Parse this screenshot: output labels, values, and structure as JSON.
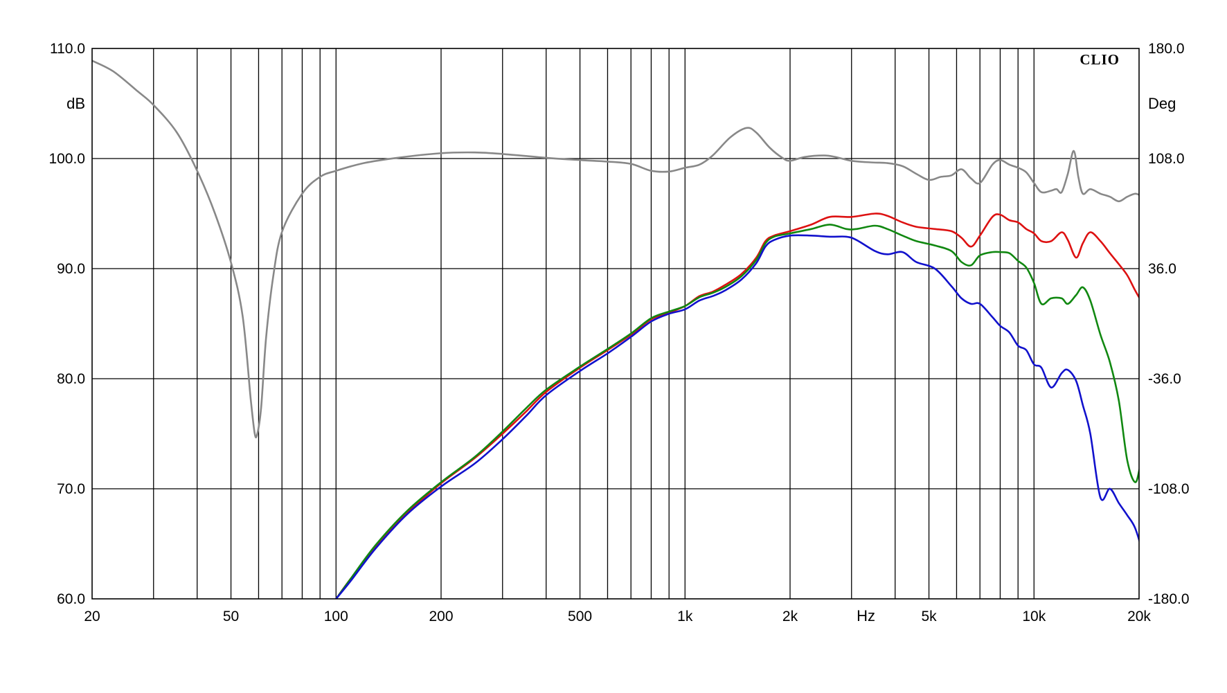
{
  "chart_data": {
    "type": "line",
    "brand": "CLIO",
    "xlabel": "Hz",
    "ylabel_left": "dB",
    "ylabel_right": "Deg",
    "x_scale": "log",
    "xlim": [
      20,
      20000
    ],
    "ylim": [
      60,
      110
    ],
    "ylim_right": [
      -180,
      180
    ],
    "grid": true,
    "x_ticks": [
      {
        "value": 20,
        "label": "20"
      },
      {
        "value": 50,
        "label": "50"
      },
      {
        "value": 100,
        "label": "100"
      },
      {
        "value": 200,
        "label": "200"
      },
      {
        "value": 500,
        "label": "500"
      },
      {
        "value": 1000,
        "label": "1k"
      },
      {
        "value": 2000,
        "label": "2k"
      },
      {
        "value": 5000,
        "label": "5k"
      },
      {
        "value": 10000,
        "label": "10k"
      },
      {
        "value": 20000,
        "label": "20k"
      }
    ],
    "x_unit_label_at": 3300,
    "y_ticks_left": [
      "60.0",
      "70.0",
      "80.0",
      "90.0",
      "100.0",
      "110.0"
    ],
    "y_ticks_right": [
      "-180.0",
      "-108.0",
      "-36.0",
      "36.0",
      "108.0",
      "180.0"
    ],
    "colors": {
      "red": "#dd1111",
      "green": "#118811",
      "blue": "#1111cc",
      "phase": "#888888",
      "grid": "#000000"
    },
    "series": [
      {
        "axis": "left",
        "color": "red",
        "points": [
          [
            100,
            60.0
          ],
          [
            110,
            61.8
          ],
          [
            130,
            64.7
          ],
          [
            160,
            67.8
          ],
          [
            200,
            70.5
          ],
          [
            250,
            72.8
          ],
          [
            300,
            75.0
          ],
          [
            350,
            77.0
          ],
          [
            400,
            78.8
          ],
          [
            500,
            81.0
          ],
          [
            600,
            82.6
          ],
          [
            700,
            84.0
          ],
          [
            800,
            85.4
          ],
          [
            900,
            86.0
          ],
          [
            1000,
            86.6
          ],
          [
            1100,
            87.5
          ],
          [
            1200,
            87.9
          ],
          [
            1300,
            88.5
          ],
          [
            1450,
            89.5
          ],
          [
            1600,
            91.0
          ],
          [
            1700,
            92.5
          ],
          [
            1800,
            93.0
          ],
          [
            2000,
            93.4
          ],
          [
            2300,
            94.0
          ],
          [
            2600,
            94.7
          ],
          [
            3000,
            94.7
          ],
          [
            3500,
            95.0
          ],
          [
            3800,
            94.8
          ],
          [
            4200,
            94.2
          ],
          [
            4600,
            93.8
          ],
          [
            5200,
            93.6
          ],
          [
            5800,
            93.4
          ],
          [
            6200,
            92.8
          ],
          [
            6600,
            92.0
          ],
          [
            7000,
            93.0
          ],
          [
            7600,
            94.7
          ],
          [
            8000,
            94.9
          ],
          [
            8500,
            94.4
          ],
          [
            9000,
            94.2
          ],
          [
            9500,
            93.6
          ],
          [
            10000,
            93.2
          ],
          [
            10500,
            92.5
          ],
          [
            11200,
            92.5
          ],
          [
            12000,
            93.3
          ],
          [
            12500,
            92.6
          ],
          [
            13200,
            91.0
          ],
          [
            13800,
            92.3
          ],
          [
            14500,
            93.3
          ],
          [
            15500,
            92.5
          ],
          [
            16500,
            91.4
          ],
          [
            17500,
            90.4
          ],
          [
            18500,
            89.4
          ],
          [
            19500,
            88.0
          ],
          [
            20500,
            86.8
          ],
          [
            21500,
            85.5
          ]
        ]
      },
      {
        "axis": "left",
        "color": "green",
        "points": [
          [
            100,
            60.0
          ],
          [
            110,
            61.8
          ],
          [
            130,
            64.9
          ],
          [
            160,
            68.0
          ],
          [
            200,
            70.6
          ],
          [
            250,
            72.9
          ],
          [
            300,
            75.2
          ],
          [
            350,
            77.3
          ],
          [
            400,
            79.0
          ],
          [
            500,
            81.1
          ],
          [
            600,
            82.7
          ],
          [
            700,
            84.1
          ],
          [
            800,
            85.5
          ],
          [
            900,
            86.1
          ],
          [
            1000,
            86.6
          ],
          [
            1100,
            87.4
          ],
          [
            1200,
            87.8
          ],
          [
            1300,
            88.3
          ],
          [
            1450,
            89.3
          ],
          [
            1600,
            90.8
          ],
          [
            1700,
            92.3
          ],
          [
            1800,
            92.9
          ],
          [
            2000,
            93.2
          ],
          [
            2300,
            93.6
          ],
          [
            2600,
            94.0
          ],
          [
            2900,
            93.6
          ],
          [
            3100,
            93.6
          ],
          [
            3500,
            93.9
          ],
          [
            3800,
            93.6
          ],
          [
            4200,
            93.0
          ],
          [
            4600,
            92.5
          ],
          [
            5200,
            92.1
          ],
          [
            5800,
            91.6
          ],
          [
            6200,
            90.6
          ],
          [
            6600,
            90.3
          ],
          [
            7000,
            91.2
          ],
          [
            7600,
            91.5
          ],
          [
            8000,
            91.5
          ],
          [
            8500,
            91.4
          ],
          [
            9000,
            90.7
          ],
          [
            9500,
            90.1
          ],
          [
            10000,
            88.7
          ],
          [
            10500,
            86.8
          ],
          [
            11200,
            87.3
          ],
          [
            12000,
            87.3
          ],
          [
            12500,
            86.8
          ],
          [
            13200,
            87.6
          ],
          [
            13800,
            88.3
          ],
          [
            14500,
            87.1
          ],
          [
            15500,
            84.0
          ],
          [
            16500,
            81.5
          ],
          [
            17500,
            78.0
          ],
          [
            18500,
            72.6
          ],
          [
            19500,
            70.6
          ],
          [
            20200,
            72.2
          ],
          [
            21000,
            73.9
          ],
          [
            21500,
            72.8
          ]
        ]
      },
      {
        "axis": "left",
        "color": "blue",
        "points": [
          [
            100,
            60.0
          ],
          [
            110,
            61.6
          ],
          [
            130,
            64.6
          ],
          [
            160,
            67.7
          ],
          [
            200,
            70.2
          ],
          [
            250,
            72.3
          ],
          [
            300,
            74.5
          ],
          [
            350,
            76.6
          ],
          [
            400,
            78.5
          ],
          [
            500,
            80.7
          ],
          [
            600,
            82.3
          ],
          [
            700,
            83.8
          ],
          [
            800,
            85.2
          ],
          [
            900,
            85.9
          ],
          [
            1000,
            86.3
          ],
          [
            1100,
            87.1
          ],
          [
            1200,
            87.5
          ],
          [
            1300,
            88.0
          ],
          [
            1450,
            89.0
          ],
          [
            1600,
            90.5
          ],
          [
            1700,
            92.0
          ],
          [
            1800,
            92.6
          ],
          [
            2000,
            93.0
          ],
          [
            2300,
            93.0
          ],
          [
            2600,
            92.9
          ],
          [
            2900,
            92.9
          ],
          [
            3100,
            92.6
          ],
          [
            3500,
            91.6
          ],
          [
            3800,
            91.3
          ],
          [
            4200,
            91.5
          ],
          [
            4600,
            90.6
          ],
          [
            5200,
            90.0
          ],
          [
            5800,
            88.4
          ],
          [
            6200,
            87.3
          ],
          [
            6600,
            86.8
          ],
          [
            7000,
            86.8
          ],
          [
            7600,
            85.6
          ],
          [
            8000,
            84.8
          ],
          [
            8500,
            84.2
          ],
          [
            9000,
            83.0
          ],
          [
            9500,
            82.6
          ],
          [
            10000,
            81.3
          ],
          [
            10500,
            81.0
          ],
          [
            11200,
            79.2
          ],
          [
            12000,
            80.5
          ],
          [
            12500,
            80.8
          ],
          [
            13200,
            79.8
          ],
          [
            13800,
            77.6
          ],
          [
            14500,
            75.0
          ],
          [
            15500,
            69.2
          ],
          [
            16500,
            70.0
          ],
          [
            17500,
            68.7
          ],
          [
            18500,
            67.6
          ],
          [
            19500,
            66.4
          ],
          [
            20500,
            64.0
          ],
          [
            21500,
            60.2
          ]
        ]
      },
      {
        "axis": "right",
        "color": "phase",
        "points": [
          [
            20,
            172.0
          ],
          [
            23,
            165.0
          ],
          [
            27,
            152.0
          ],
          [
            30,
            143.0
          ],
          [
            35,
            125.0
          ],
          [
            40,
            100.0
          ],
          [
            45,
            72.0
          ],
          [
            50,
            40.0
          ],
          [
            54,
            5.0
          ],
          [
            57,
            -50.0
          ],
          [
            58.5,
            -72.0
          ],
          [
            59.5,
            -72.0
          ],
          [
            61,
            -55.0
          ],
          [
            63,
            -10.0
          ],
          [
            66,
            30.0
          ],
          [
            70,
            60.0
          ],
          [
            80,
            85.0
          ],
          [
            90,
            96.0
          ],
          [
            100,
            100.0
          ],
          [
            120,
            105.0
          ],
          [
            150,
            108.5
          ],
          [
            200,
            111.5
          ],
          [
            250,
            112.0
          ],
          [
            300,
            111.0
          ],
          [
            400,
            108.5
          ],
          [
            500,
            107.0
          ],
          [
            600,
            106.0
          ],
          [
            700,
            104.5
          ],
          [
            800,
            100.0
          ],
          [
            900,
            99.5
          ],
          [
            1000,
            102.0
          ],
          [
            1100,
            104.0
          ],
          [
            1200,
            110.0
          ],
          [
            1350,
            122.0
          ],
          [
            1500,
            128.0
          ],
          [
            1600,
            125.0
          ],
          [
            1750,
            115.0
          ],
          [
            1900,
            108.5
          ],
          [
            2000,
            106.5
          ],
          [
            2200,
            109.0
          ],
          [
            2500,
            110.0
          ],
          [
            2700,
            109.0
          ],
          [
            3000,
            106.5
          ],
          [
            3400,
            105.5
          ],
          [
            3800,
            105.0
          ],
          [
            4200,
            103.0
          ],
          [
            4600,
            98.0
          ],
          [
            5000,
            94.0
          ],
          [
            5400,
            96.0
          ],
          [
            5800,
            97.0
          ],
          [
            6200,
            101.0
          ],
          [
            6600,
            95.0
          ],
          [
            7000,
            92.0
          ],
          [
            7600,
            104.0
          ],
          [
            8000,
            107.0
          ],
          [
            8500,
            104.0
          ],
          [
            9000,
            102.0
          ],
          [
            9500,
            99.0
          ],
          [
            10000,
            92.0
          ],
          [
            10500,
            86.0
          ],
          [
            11200,
            87.0
          ],
          [
            11600,
            88.0
          ],
          [
            12000,
            86.0
          ],
          [
            12500,
            98.0
          ],
          [
            13000,
            113.0
          ],
          [
            13400,
            96.0
          ],
          [
            13800,
            85.0
          ],
          [
            14500,
            88.0
          ],
          [
            15500,
            85.0
          ],
          [
            16500,
            83.0
          ],
          [
            17500,
            80.0
          ],
          [
            18500,
            83.0
          ],
          [
            19500,
            85.0
          ],
          [
            20500,
            84.0
          ],
          [
            21500,
            90.0
          ]
        ]
      }
    ]
  }
}
